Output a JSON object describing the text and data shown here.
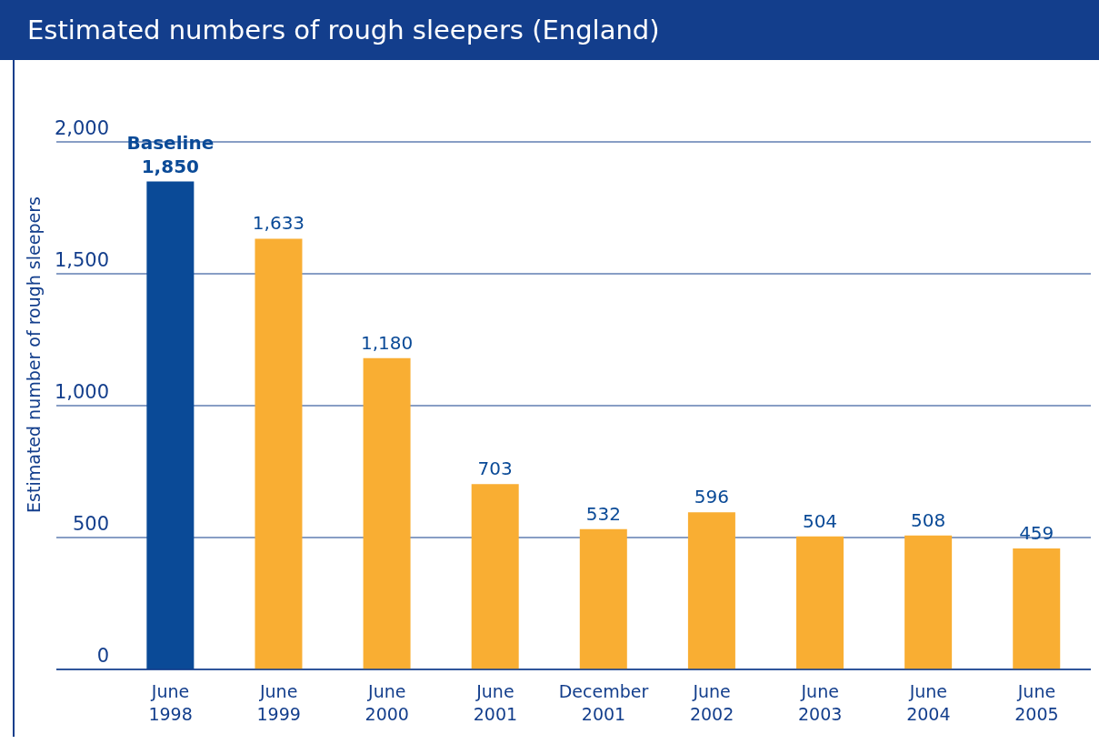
{
  "chart_data": {
    "type": "bar",
    "title": "Estimated numbers of rough sleepers (England)",
    "ylabel": "Estimated number of rough sleepers",
    "categories": [
      "June 1998",
      "June 1999",
      "June 2000",
      "June 2001",
      "December 2001",
      "June 2002",
      "June 2003",
      "June 2004",
      "June 2005"
    ],
    "values": [
      1850,
      1633,
      1180,
      703,
      532,
      596,
      504,
      508,
      459
    ],
    "colors": [
      "#0a4a97",
      "#f9ae33",
      "#f9ae33",
      "#f9ae33",
      "#f9ae33",
      "#f9ae33",
      "#f9ae33",
      "#f9ae33",
      "#f9ae33"
    ],
    "value_labels": [
      "Baseline\n1,850",
      "1,633",
      "1,180",
      "703",
      "532",
      "596",
      "504",
      "508",
      "459"
    ],
    "ylim": [
      0,
      2000
    ],
    "yticks": [
      0,
      500,
      {
        "value": 1000,
        "label": "1,000"
      },
      {
        "value": 1500,
        "label": "1,500"
      },
      {
        "value": 2000,
        "label": "2,000"
      }
    ],
    "grid": "y"
  }
}
